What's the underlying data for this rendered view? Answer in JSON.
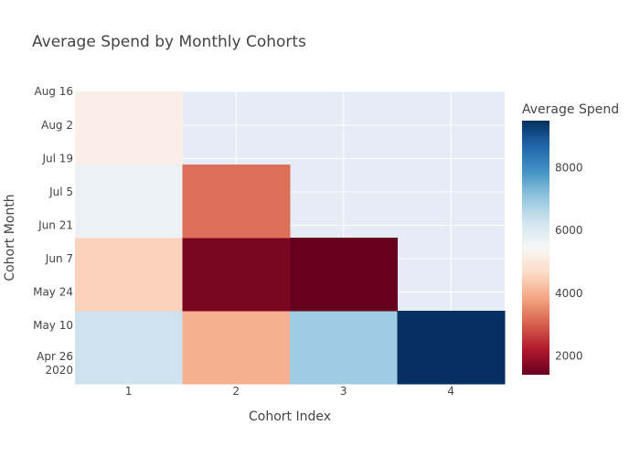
{
  "chart_data": {
    "type": "heatmap",
    "title": "Average Spend by Monthly Cohorts",
    "xlabel": "Cohort Index",
    "ylabel": "Cohort Month",
    "colorbar_title": "Average Spend",
    "colorscale": "RdBu",
    "zrange": [
      1400,
      9500
    ],
    "colorbar_ticks": [
      2000,
      4000,
      6000,
      8000
    ],
    "x_ticks": [
      "1",
      "2",
      "3",
      "4"
    ],
    "y_ticks": [
      "Aug 16",
      "Aug 2",
      "Jul 19",
      "Jul 5",
      "Jun 21",
      "Jun 7",
      "May 24",
      "May 10",
      "Apr 26\n2020"
    ],
    "cohorts": [
      {
        "cohort": "2020-05",
        "values": [
          6300,
          4000,
          6900,
          9500
        ]
      },
      {
        "cohort": "2020-06",
        "values": [
          4500,
          1600,
          1400,
          null
        ]
      },
      {
        "cohort": "2020-07",
        "values": [
          5700,
          3200,
          null,
          null
        ]
      },
      {
        "cohort": "2020-08",
        "values": [
          5200,
          null,
          null,
          null
        ]
      }
    ]
  }
}
